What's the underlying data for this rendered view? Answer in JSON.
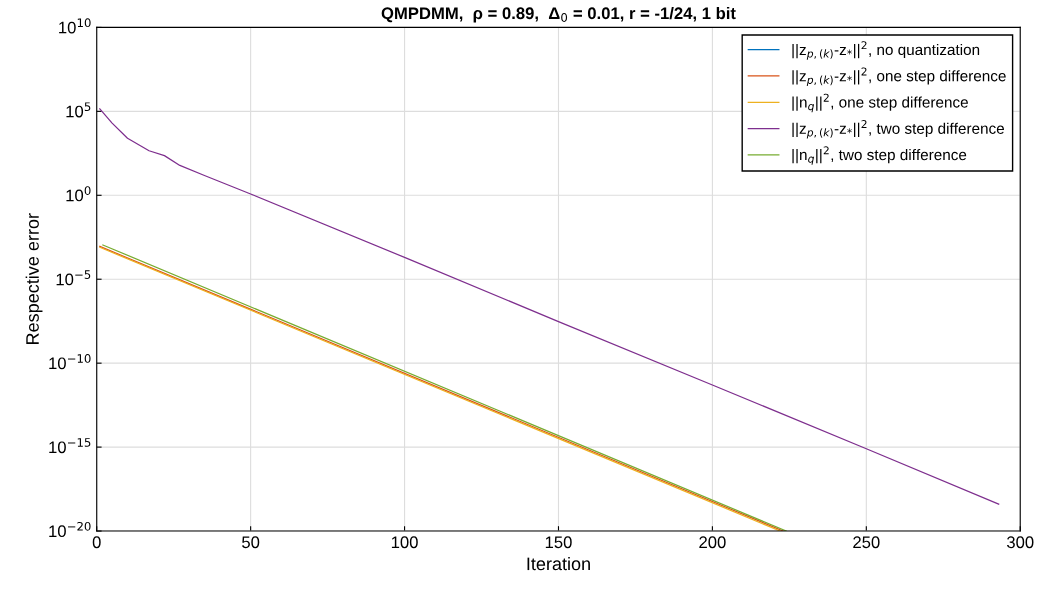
{
  "chart_data": {
    "type": "line",
    "title": "QMPDMM,  ρ = 0.89,  Δ$_{0}$ = 0.01, r = -1/24, 1 bit",
    "xlabel": "Iteration",
    "ylabel": "Respective error",
    "series": [
      {
        "name": "||z$_{p,(k)}$-z$_{*}$||$^{2}$, no quantization",
        "color": "#0072bd"
      },
      {
        "name": "||z$_{p,(k)}$-z$_{*}$||$^{2}$, one step difference",
        "color": "#d95319",
        "x": [
          1,
          223
        ],
        "values": [
          0.0009,
          1e-20
        ]
      },
      {
        "name": "||n$_{q}$||$^{2}$, one step difference",
        "color": "#edb120",
        "x": [
          1,
          222
        ],
        "values": [
          0.0008,
          1e-20
        ]
      },
      {
        "name": "||z$_{p,(k)}$-z$_{*}$||$^{2}$, two step difference",
        "color": "#7e2f8e",
        "x": [
          1,
          5,
          10,
          17,
          22,
          27,
          35,
          50,
          100,
          150,
          200,
          250,
          293
        ],
        "values": [
          140000.0,
          20000.0,
          2500.0,
          450.0,
          230.0,
          60.0,
          15.0,
          1.2,
          0.0002,
          3e-08,
          5e-12,
          8e-16,
          4e-19
        ]
      },
      {
        "name": "||n$_{q}$||$^{2}$, two step difference",
        "color": "#77ac30",
        "x": [
          2,
          224
        ],
        "values": [
          0.0011,
          1e-20
        ]
      }
    ],
    "log": "y",
    "xlim": [
      0,
      300
    ],
    "xticks": [
      0,
      50,
      100,
      150,
      200,
      250,
      300
    ],
    "ylim": [
      1e-20,
      10000000000.0
    ],
    "yticks": [
      {
        "value": 1e-20,
        "label": "10$^{−20}$"
      },
      {
        "value": 1e-15,
        "label": "10$^{−15}$"
      },
      {
        "value": 1e-10,
        "label": "10$^{−10}$"
      },
      {
        "value": 1e-05,
        "label": "10$^{−5}$"
      },
      {
        "value": 1,
        "label": "10$^{0}$"
      },
      {
        "value": 100000.0,
        "label": "10$^{5}$"
      },
      {
        "value": 10000000000.0,
        "label": "10$^{10}$"
      }
    ],
    "grid": true,
    "legend": "top right"
  }
}
